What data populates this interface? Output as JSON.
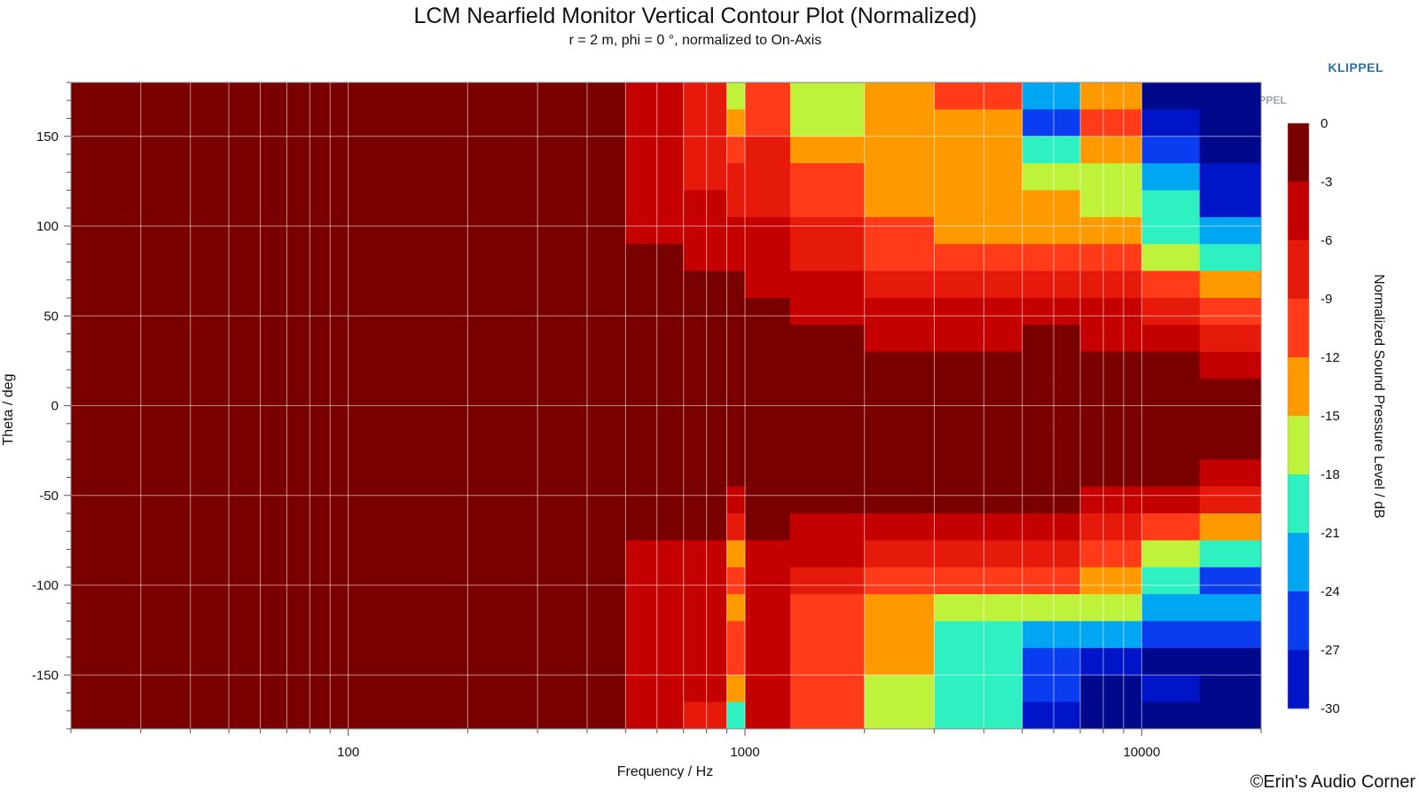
{
  "chart_data": {
    "type": "heatmap",
    "title": "LCM Nearfield Monitor Vertical Contour Plot (Normalized)",
    "subtitle": "r = 2 m, phi = 0 °, normalized to On-Axis",
    "xlabel": "Frequency / Hz",
    "ylabel": "Theta / deg",
    "colorbar_label": "Normalized Sound Pressure Level / dB",
    "x_scale": "log",
    "xlim": [
      20,
      20000
    ],
    "ylim": [
      -180,
      180
    ],
    "x_ticks": [
      100,
      1000,
      10000
    ],
    "x_tick_labels": [
      "100",
      "1000",
      "10000"
    ],
    "y_ticks": [
      150,
      100,
      50,
      0,
      -50,
      -100,
      -150
    ],
    "y_tick_labels": [
      "150",
      "100",
      "50",
      "0",
      "-50",
      "-100",
      "-150"
    ],
    "colorbar": {
      "levels": [
        0,
        -3,
        -6,
        -9,
        -12,
        -15,
        -18,
        -21,
        -24,
        -27,
        -30
      ],
      "labels": [
        "0",
        "-3",
        "-6",
        "-9",
        "-12",
        "-15",
        "-18",
        "-21",
        "-24",
        "-27",
        "-30"
      ],
      "colors": [
        "#7a0000",
        "#c40000",
        "#e61a0a",
        "#ff3b1a",
        "#ff9900",
        "#bff23a",
        "#2ef0c0",
        "#00a6f2",
        "#0a3cf0",
        "#0014c8",
        "#00088c"
      ]
    },
    "below_range_color": "#f6f6f6",
    "grid": true,
    "band_frequencies_hz": [
      20,
      400,
      500,
      700,
      900,
      1000,
      1300,
      2000,
      3000,
      5000,
      7000,
      10000,
      14000,
      20000
    ],
    "band_angles_deg": [
      180,
      165,
      150,
      135,
      120,
      105,
      90,
      75,
      60,
      45,
      30,
      15,
      0,
      -15,
      -30,
      -45,
      -60,
      -75,
      -90,
      -105,
      -120,
      -135,
      -150,
      -165,
      -180
    ],
    "values_db": [
      [
        0,
        0,
        -3,
        -6,
        -15,
        -9,
        -15,
        -12,
        -9,
        -21,
        -12,
        -30,
        -30
      ],
      [
        0,
        0,
        -3,
        -6,
        -12,
        -9,
        -15,
        -12,
        -12,
        -24,
        -9,
        -27,
        -30
      ],
      [
        0,
        0,
        -3,
        -6,
        -9,
        -6,
        -12,
        -12,
        -12,
        -18,
        -12,
        -24,
        -30
      ],
      [
        0,
        0,
        -3,
        -6,
        -6,
        -6,
        -9,
        -12,
        -12,
        -15,
        -15,
        -21,
        -27
      ],
      [
        0,
        0,
        -3,
        -3,
        -6,
        -6,
        -9,
        -12,
        -12,
        -12,
        -15,
        -18,
        -27
      ],
      [
        0,
        0,
        -3,
        -3,
        -3,
        -3,
        -6,
        -9,
        -12,
        -12,
        -12,
        -18,
        -21
      ],
      [
        0,
        0,
        0,
        -3,
        -3,
        -3,
        -6,
        -9,
        -9,
        -9,
        -9,
        -15,
        -18
      ],
      [
        0,
        0,
        0,
        0,
        0,
        -3,
        -3,
        -6,
        -6,
        -6,
        -6,
        -9,
        -12
      ],
      [
        0,
        0,
        0,
        0,
        0,
        0,
        -3,
        -3,
        -3,
        -3,
        -3,
        -6,
        -9
      ],
      [
        0,
        0,
        0,
        0,
        0,
        0,
        0,
        -3,
        -3,
        0,
        -3,
        -3,
        -6
      ],
      [
        0,
        0,
        0,
        0,
        0,
        0,
        0,
        0,
        0,
        0,
        0,
        0,
        -3
      ],
      [
        0,
        0,
        0,
        0,
        0,
        0,
        0,
        0,
        0,
        0,
        0,
        0,
        0
      ],
      [
        0,
        0,
        0,
        0,
        0,
        0,
        0,
        0,
        0,
        0,
        0,
        0,
        0
      ],
      [
        0,
        0,
        0,
        0,
        0,
        0,
        0,
        0,
        0,
        0,
        0,
        0,
        0
      ],
      [
        0,
        0,
        0,
        0,
        0,
        0,
        0,
        0,
        0,
        0,
        0,
        0,
        -3
      ],
      [
        0,
        0,
        0,
        0,
        -3,
        0,
        0,
        0,
        0,
        0,
        -3,
        -3,
        -6
      ],
      [
        0,
        0,
        0,
        0,
        -6,
        0,
        -3,
        -3,
        -3,
        -3,
        -6,
        -9,
        -12
      ],
      [
        0,
        0,
        -3,
        -3,
        -12,
        -3,
        -3,
        -6,
        -6,
        -6,
        -9,
        -15,
        -18
      ],
      [
        0,
        0,
        -3,
        -3,
        -9,
        -3,
        -6,
        -9,
        -9,
        -9,
        -12,
        -18,
        -24
      ],
      [
        0,
        0,
        -3,
        -3,
        -12,
        -3,
        -9,
        -12,
        -15,
        -15,
        -15,
        -21,
        -21
      ],
      [
        0,
        0,
        -3,
        -3,
        -9,
        -3,
        -9,
        -12,
        -18,
        -21,
        -21,
        -24,
        -24
      ],
      [
        0,
        0,
        -3,
        -3,
        -9,
        -3,
        -9,
        -12,
        -18,
        -24,
        -27,
        -30,
        -30
      ],
      [
        0,
        0,
        -3,
        -3,
        -12,
        -3,
        -9,
        -15,
        -18,
        -24,
        -30,
        -27,
        -30
      ],
      [
        0,
        0,
        -3,
        -6,
        -18,
        -3,
        -9,
        -15,
        -18,
        -27,
        -30,
        -30,
        -30
      ]
    ]
  },
  "branding": {
    "klippel": "KLIPPEL",
    "copyright": "©Erin's Audio Corner"
  }
}
